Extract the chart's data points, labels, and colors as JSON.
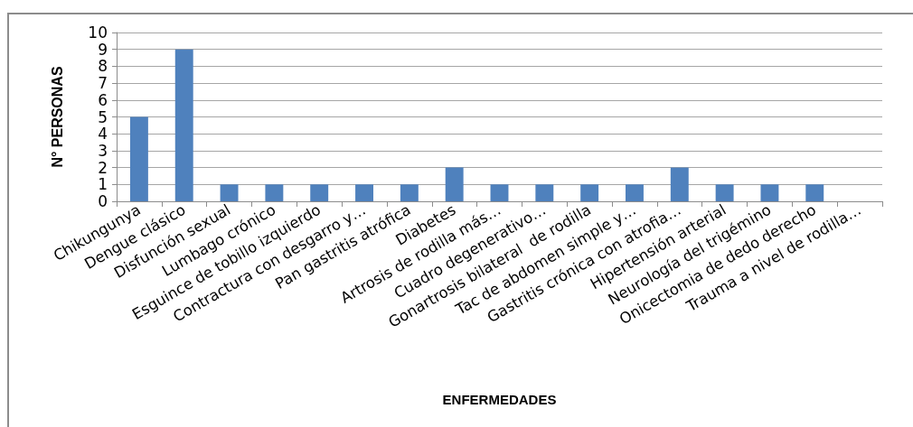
{
  "chart_data": {
    "type": "bar",
    "xlabel": "ENFERMEDADES",
    "ylabel": "N° PERSONAS",
    "categories": [
      "Chikungunya",
      "Dengue clásico",
      "Disfunción sexual",
      "Lumbago crónico",
      "Esguince de tobillo izquierdo",
      "Contractura con desgarro y…",
      "Pan gastritis atrófica",
      "Diabetes",
      "Artrosis de rodilla más…",
      "Cuadro degenerativo…",
      "Gonartrosis bilateral  de rodilla",
      "Tac de abdomen simple y…",
      "Gastritis crónica con atrofia…",
      "Hipertensión arterial",
      "Neurología del trigémino",
      "Onicectomia de dedo derecho",
      "Trauma a nivel de rodilla…"
    ],
    "values": [
      5,
      9,
      1,
      1,
      1,
      1,
      1,
      2,
      1,
      1,
      1,
      1,
      2,
      1,
      1,
      1,
      0
    ],
    "color": "#4f81bd",
    "ylim": [
      0,
      10
    ],
    "yticks": [
      0,
      1,
      2,
      3,
      4,
      5,
      6,
      7,
      8,
      9,
      10
    ],
    "grid": "y"
  }
}
